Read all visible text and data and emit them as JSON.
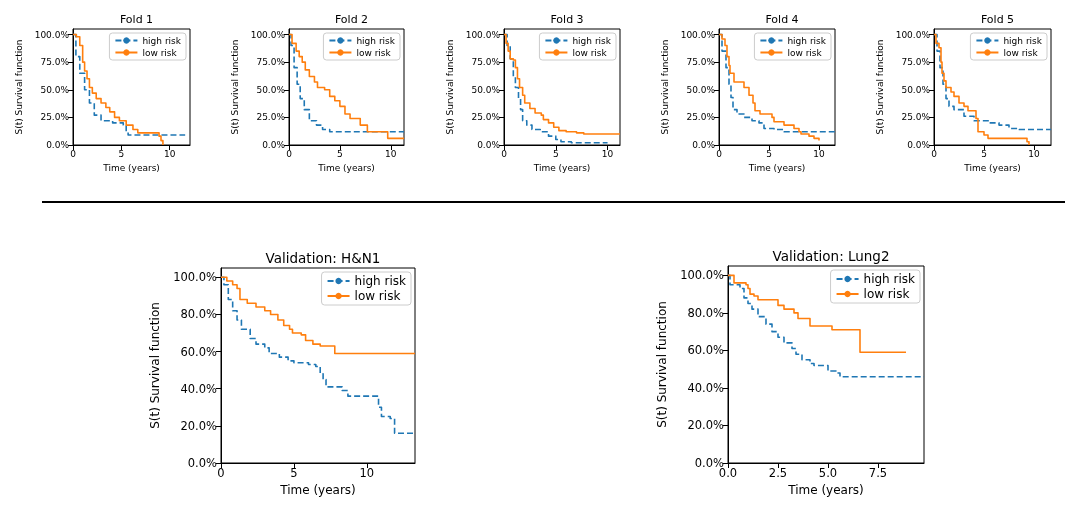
{
  "chart_data": [
    {
      "type": "step",
      "title": "Fold 1",
      "xlabel": "Time (years)",
      "ylabel": "S(t) Survival function",
      "xlim": [
        0,
        12.1
      ],
      "xticks": [
        0,
        5,
        10
      ],
      "ylim": [
        0,
        105
      ],
      "yticks": [
        {
          "value": 0,
          "label": "0.0%"
        },
        {
          "value": 25,
          "label": "25.0%"
        },
        {
          "value": 50,
          "label": "50.0%"
        },
        {
          "value": 75,
          "label": "75.0%"
        },
        {
          "value": 100,
          "label": "100.0%"
        }
      ],
      "legend": "top right",
      "series": [
        {
          "name": "high risk",
          "color": "#1f77b4",
          "line_style": "dashed",
          "x": [
            0,
            0.3,
            0.7,
            1.2,
            1.7,
            2.2,
            2.9,
            4.1,
            5.2,
            5.5,
            5.7,
            11.6
          ],
          "values": [
            100,
            80,
            65,
            50,
            38,
            27,
            22,
            20,
            18,
            12,
            9,
            9
          ]
        },
        {
          "name": "low risk",
          "color": "#ff7f0e",
          "line_style": "solid",
          "x": [
            0,
            0.35,
            0.7,
            1.0,
            1.2,
            1.45,
            1.7,
            2.0,
            2.4,
            2.9,
            3.4,
            3.8,
            4.3,
            4.8,
            5.5,
            6.2,
            6.7,
            8.9,
            9.1,
            9.3
          ],
          "values": [
            100,
            98,
            90,
            75,
            67,
            60,
            52,
            47,
            42,
            38,
            34,
            30,
            25,
            22,
            18,
            14,
            11,
            8,
            4,
            0
          ]
        }
      ]
    },
    {
      "type": "step",
      "title": "Fold 2",
      "xlabel": "Time (years)",
      "ylabel": "S(t) Survival function",
      "xlim": [
        0,
        11.3
      ],
      "xticks": [
        0,
        5,
        10
      ],
      "ylim": [
        0,
        105
      ],
      "yticks": [
        {
          "value": 0,
          "label": "0.0%"
        },
        {
          "value": 25,
          "label": "25.0%"
        },
        {
          "value": 50,
          "label": "50.0%"
        },
        {
          "value": 75,
          "label": "75.0%"
        },
        {
          "value": 100,
          "label": "100.0%"
        }
      ],
      "legend": "top right",
      "series": [
        {
          "name": "high risk",
          "color": "#1f77b4",
          "line_style": "dashed",
          "x": [
            0,
            0.2,
            0.5,
            0.8,
            1.1,
            1.5,
            2.0,
            2.7,
            3.3,
            4.0,
            11.3
          ],
          "values": [
            100,
            90,
            70,
            55,
            42,
            32,
            22,
            18,
            14,
            12,
            12
          ]
        },
        {
          "name": "low risk",
          "color": "#ff7f0e",
          "line_style": "solid",
          "x": [
            0,
            0.3,
            0.7,
            1.0,
            1.3,
            1.6,
            2.0,
            2.5,
            2.8,
            3.5,
            4.0,
            4.5,
            5.0,
            5.5,
            6.0,
            7.0,
            7.7,
            9.7,
            11.3
          ],
          "values": [
            100,
            92,
            85,
            80,
            75,
            68,
            62,
            57,
            52,
            50,
            44,
            40,
            35,
            28,
            24,
            18,
            12,
            6,
            6
          ]
        }
      ]
    },
    {
      "type": "step",
      "title": "Fold 3",
      "xlabel": "Time (years)",
      "ylabel": "S(t) Survival function",
      "xlim": [
        0,
        11.2
      ],
      "xticks": [
        0,
        5,
        10
      ],
      "ylim": [
        0,
        105
      ],
      "yticks": [
        {
          "value": 0,
          "label": "0.0%"
        },
        {
          "value": 25,
          "label": "25.0%"
        },
        {
          "value": 50,
          "label": "50.0%"
        },
        {
          "value": 75,
          "label": "75.0%"
        },
        {
          "value": 100,
          "label": "100.0%"
        }
      ],
      "legend": "top right",
      "series": [
        {
          "name": "high risk",
          "color": "#1f77b4",
          "line_style": "dashed",
          "x": [
            0,
            0.3,
            0.6,
            0.9,
            1.1,
            1.4,
            1.6,
            1.8,
            2.2,
            2.7,
            3.5,
            4.3,
            5.0,
            5.5,
            6.5,
            10
          ],
          "values": [
            100,
            90,
            78,
            62,
            52,
            42,
            32,
            22,
            18,
            14,
            12,
            8,
            5,
            3,
            2,
            2
          ]
        },
        {
          "name": "low risk",
          "color": "#ff7f0e",
          "line_style": "solid",
          "x": [
            0,
            0.2,
            0.4,
            0.6,
            0.9,
            1.1,
            1.3,
            1.5,
            1.8,
            2.0,
            2.5,
            3.0,
            3.6,
            3.8,
            4.3,
            4.8,
            5.3,
            6.0,
            7.0,
            7.7,
            11.2
          ],
          "values": [
            100,
            92,
            85,
            78,
            77,
            70,
            60,
            52,
            45,
            38,
            33,
            29,
            27,
            23,
            20,
            16,
            13,
            12,
            11,
            10,
            10
          ]
        }
      ]
    },
    {
      "type": "step",
      "title": "Fold 4",
      "xlabel": "Time (years)",
      "ylabel": "S(t) Survival function",
      "xlim": [
        0,
        11.6
      ],
      "xticks": [
        0,
        5,
        10
      ],
      "ylim": [
        0,
        105
      ],
      "yticks": [
        {
          "value": 0,
          "label": "0.0%"
        },
        {
          "value": 25,
          "label": "25.0%"
        },
        {
          "value": 50,
          "label": "50.0%"
        },
        {
          "value": 75,
          "label": "75.0%"
        },
        {
          "value": 100,
          "label": "100.0%"
        }
      ],
      "legend": "top right",
      "series": [
        {
          "name": "high risk",
          "color": "#1f77b4",
          "line_style": "dashed",
          "x": [
            0,
            0.3,
            0.7,
            1.0,
            1.2,
            1.4,
            1.8,
            2.5,
            3.3,
            4.0,
            4.5,
            5.5,
            6.5,
            11.6
          ],
          "values": [
            100,
            85,
            70,
            55,
            43,
            32,
            28,
            25,
            22,
            20,
            15,
            14,
            12,
            12
          ]
        },
        {
          "name": "low risk",
          "color": "#ff7f0e",
          "line_style": "solid",
          "x": [
            0,
            0.3,
            0.6,
            0.8,
            1.0,
            1.1,
            1.5,
            2.5,
            3.0,
            3.4,
            3.6,
            4.1,
            5.3,
            5.5,
            6.5,
            7.5,
            8.0,
            8.2,
            9.0,
            9.5,
            10.0
          ],
          "values": [
            100,
            96,
            90,
            80,
            72,
            65,
            57,
            52,
            45,
            38,
            31,
            28,
            25,
            21,
            18,
            15,
            12,
            10,
            8,
            6,
            4
          ]
        }
      ]
    },
    {
      "type": "step",
      "title": "Fold 5",
      "xlabel": "Time (years)",
      "ylabel": "S(t) Survival function",
      "xlim": [
        0,
        11.7
      ],
      "xticks": [
        0,
        5,
        10
      ],
      "ylim": [
        0,
        105
      ],
      "yticks": [
        {
          "value": 0,
          "label": "0.0%"
        },
        {
          "value": 25,
          "label": "25.0%"
        },
        {
          "value": 50,
          "label": "50.0%"
        },
        {
          "value": 75,
          "label": "75.0%"
        },
        {
          "value": 100,
          "label": "100.0%"
        }
      ],
      "legend": "top right",
      "series": [
        {
          "name": "high risk",
          "color": "#1f77b4",
          "line_style": "dashed",
          "x": [
            0,
            0.3,
            0.6,
            0.9,
            1.2,
            1.5,
            2.0,
            3.0,
            4.0,
            5.5,
            6.5,
            7.5,
            8.5,
            11.7
          ],
          "values": [
            100,
            85,
            70,
            55,
            42,
            35,
            32,
            26,
            22,
            20,
            18,
            15,
            14,
            14
          ]
        },
        {
          "name": "low risk",
          "color": "#ff7f0e",
          "line_style": "solid",
          "x": [
            0,
            0.2,
            0.5,
            0.7,
            0.8,
            1.0,
            1.2,
            1.7,
            2.0,
            2.5,
            3.0,
            3.4,
            4.2,
            4.4,
            5.0,
            5.4,
            9.3,
            9.5
          ],
          "values": [
            100,
            92,
            88,
            75,
            65,
            58,
            52,
            48,
            44,
            38,
            35,
            31,
            24,
            12,
            9,
            6,
            3,
            0
          ]
        }
      ]
    },
    {
      "type": "step",
      "title": "Validation: H&N1",
      "xlabel": "Time (years)",
      "ylabel": "S(t) Survival function",
      "xlim": [
        0,
        13.3
      ],
      "xticks": [
        0,
        5,
        10
      ],
      "ylim": [
        0,
        105
      ],
      "yticks": [
        {
          "value": 0,
          "label": "0.0%"
        },
        {
          "value": 20,
          "label": "20.0%"
        },
        {
          "value": 40,
          "label": "40.0%"
        },
        {
          "value": 60,
          "label": "60.0%"
        },
        {
          "value": 80,
          "label": "80.0%"
        },
        {
          "value": 100,
          "label": "100.0%"
        }
      ],
      "legend": "top right",
      "series": [
        {
          "name": "high risk",
          "color": "#1f77b4",
          "line_style": "dashed",
          "x": [
            0,
            0.2,
            0.5,
            0.8,
            1.1,
            1.4,
            2.0,
            2.4,
            3.0,
            3.3,
            4.0,
            4.6,
            5.0,
            6.0,
            6.5,
            6.8,
            7.0,
            7.2,
            7.8,
            8.3,
            8.7,
            10.6,
            10.8,
            11.0,
            11.6,
            11.9,
            13.3
          ],
          "values": [
            100,
            96,
            88,
            82,
            77,
            72,
            67,
            64,
            62,
            59,
            57,
            55,
            54,
            53,
            52,
            48,
            45,
            41,
            41,
            39,
            36,
            36,
            30,
            25,
            24,
            16,
            16
          ]
        },
        {
          "name": "low risk",
          "color": "#ff7f0e",
          "line_style": "solid",
          "x": [
            0,
            0.4,
            0.8,
            1.1,
            1.3,
            1.8,
            2.4,
            3.0,
            3.4,
            3.9,
            4.3,
            4.7,
            4.9,
            5.5,
            5.8,
            6.3,
            6.8,
            7.7,
            7.8,
            13.3
          ],
          "values": [
            100,
            98,
            96,
            94,
            88,
            86,
            84,
            82,
            80,
            77,
            74,
            72,
            70,
            69,
            66,
            64,
            63,
            63,
            59,
            59
          ]
        }
      ]
    },
    {
      "type": "step",
      "title": "Validation: Lung2",
      "xlabel": "Time (years)",
      "ylabel": "S(t) Survival function",
      "xlim": [
        0,
        9.8
      ],
      "xticks": [
        {
          "value": 0,
          "label": "0.0"
        },
        {
          "value": 2.5,
          "label": "2.5"
        },
        {
          "value": 5,
          "label": "5.0"
        },
        {
          "value": 7.5,
          "label": "7.5"
        }
      ],
      "ylim": [
        0,
        105
      ],
      "yticks": [
        {
          "value": 0,
          "label": "0.0%"
        },
        {
          "value": 20,
          "label": "20.0%"
        },
        {
          "value": 40,
          "label": "40.0%"
        },
        {
          "value": 60,
          "label": "60.0%"
        },
        {
          "value": 80,
          "label": "80.0%"
        },
        {
          "value": 100,
          "label": "100.0%"
        }
      ],
      "legend": "top right",
      "series": [
        {
          "name": "high risk",
          "color": "#1f77b4",
          "line_style": "dashed",
          "x": [
            0,
            0.1,
            0.6,
            0.8,
            1.0,
            1.2,
            1.5,
            1.9,
            2.2,
            2.5,
            2.8,
            3.2,
            3.4,
            3.7,
            4.1,
            4.3,
            5.0,
            5.4,
            5.6,
            9.8
          ],
          "values": [
            100,
            95,
            93,
            88,
            85,
            82,
            78,
            74,
            70,
            67,
            64,
            61,
            58,
            55,
            53,
            52,
            49,
            48,
            46,
            46
          ]
        },
        {
          "name": "low risk",
          "color": "#ff7f0e",
          "line_style": "solid",
          "x": [
            0,
            0.3,
            0.9,
            1.0,
            1.1,
            1.3,
            1.5,
            2.3,
            2.5,
            2.8,
            3.3,
            3.5,
            3.9,
            4.1,
            5.1,
            5.2,
            6.4,
            6.6,
            8.9
          ],
          "values": [
            100,
            96,
            95,
            93,
            90,
            89,
            87,
            87,
            84,
            82,
            80,
            77,
            77,
            73,
            73,
            71,
            71,
            59,
            59
          ]
        }
      ]
    }
  ]
}
